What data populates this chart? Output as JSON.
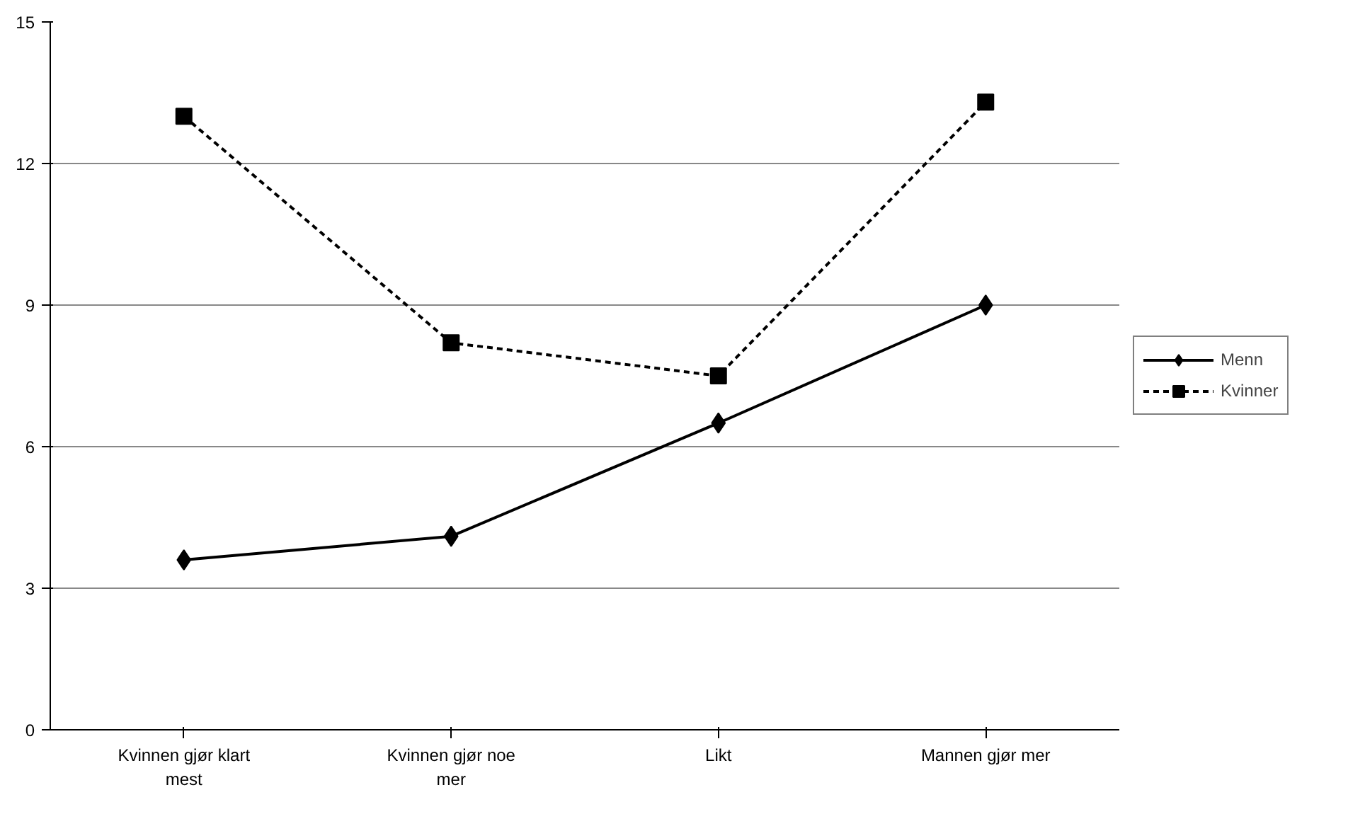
{
  "chart_data": {
    "type": "line",
    "categories": [
      "Kvinnen gjør klart mest",
      "Kvinnen gjør noe mer",
      "Likt",
      "Mannen gjør mer"
    ],
    "series": [
      {
        "name": "Menn",
        "color": "#000000",
        "values": [
          3.6,
          4.1,
          6.5,
          9.0
        ],
        "marker": "diamond",
        "line_style": "solid"
      },
      {
        "name": "Kvinner",
        "color": "#000000",
        "values": [
          13.0,
          8.2,
          7.5,
          13.3
        ],
        "marker": "square",
        "line_style": "dashed"
      }
    ],
    "ylim": [
      0,
      15
    ],
    "yticks": [
      0,
      3,
      6,
      9,
      12,
      15
    ],
    "grid": "y",
    "legend": "right"
  }
}
